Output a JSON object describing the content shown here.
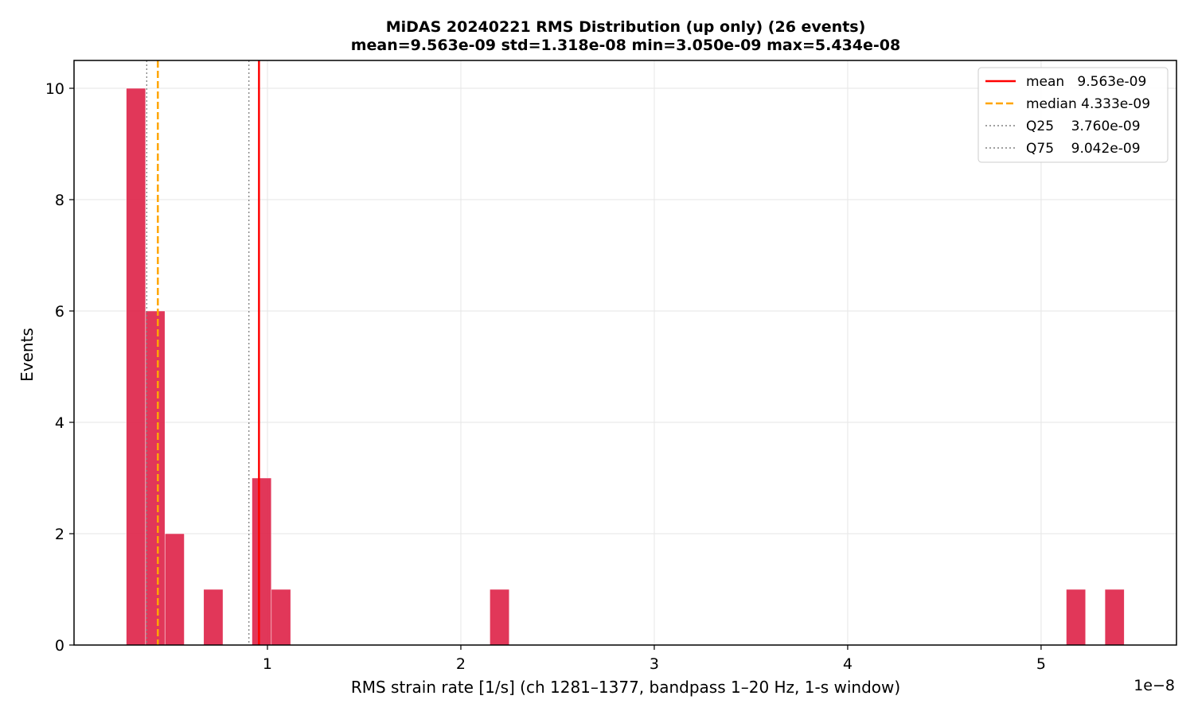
{
  "chart_data": {
    "type": "bar",
    "title": "MiDAS 20240221  RMS Distribution  (up only)  (26 events)",
    "subtitle": "mean=9.563e-09  std=1.318e-08  min=3.050e-09  max=5.434e-08",
    "xlabel": "RMS strain rate [1/s]  (ch 1281–1377, bandpass 1–20 Hz, 1-s window)",
    "ylabel": "Events",
    "x_scale_label": "1e−8",
    "xlim": [
      0.0,
      5.7
    ],
    "ylim": [
      0,
      10.5
    ],
    "x_ticks": [
      1,
      2,
      3,
      4,
      5
    ],
    "y_ticks": [
      0,
      2,
      4,
      6,
      8,
      10
    ],
    "x_tick_labels": [
      "1",
      "2",
      "3",
      "4",
      "5"
    ],
    "y_tick_labels": [
      "0",
      "2",
      "4",
      "6",
      "8",
      "10"
    ],
    "grid": true,
    "bar_color": "#dc143c",
    "bin_width": 0.1,
    "bins": [
      {
        "start": 0.27,
        "count": 10
      },
      {
        "start": 0.37,
        "count": 6
      },
      {
        "start": 0.47,
        "count": 2
      },
      {
        "start": 0.67,
        "count": 1
      },
      {
        "start": 0.92,
        "count": 3
      },
      {
        "start": 1.02,
        "count": 1
      },
      {
        "start": 2.15,
        "count": 1
      },
      {
        "start": 5.13,
        "count": 1
      },
      {
        "start": 5.33,
        "count": 1
      }
    ],
    "reference_lines": [
      {
        "name": "mean",
        "value": 0.9563,
        "color": "#ff0000",
        "style": "solid",
        "label": "mean   9.563e-09"
      },
      {
        "name": "median",
        "value": 0.4333,
        "color": "#ffa500",
        "style": "dashed",
        "label": "median 4.333e-09"
      },
      {
        "name": "Q25",
        "value": 0.376,
        "color": "#808080",
        "style": "dotted",
        "label": "Q25    3.760e-09"
      },
      {
        "name": "Q75",
        "value": 0.9042,
        "color": "#808080",
        "style": "dotted",
        "label": "Q75    9.042e-09"
      }
    ],
    "legend_position": "top-right"
  }
}
